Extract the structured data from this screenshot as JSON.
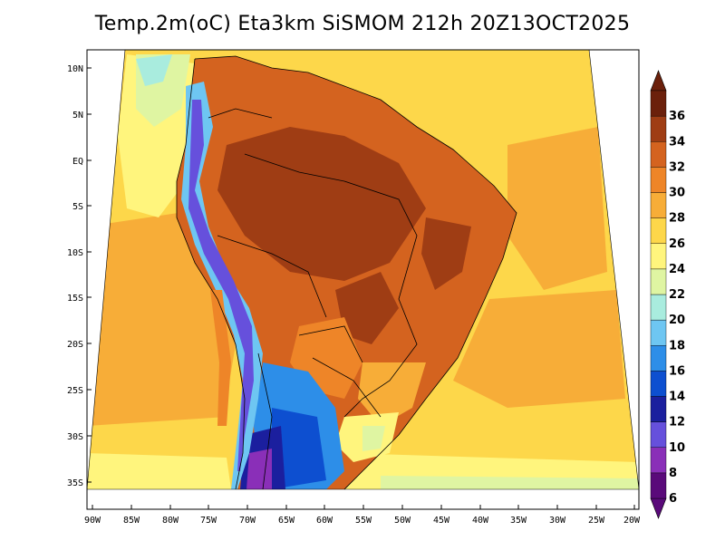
{
  "title": "Temp.2m(oC) Eta3km SiSMOM 212h 20Z13OCT2025",
  "lat_labels": [
    "10N",
    "5N",
    "EQ",
    "5S",
    "10S",
    "15S",
    "20S",
    "25S",
    "30S",
    "35S"
  ],
  "lon_labels": [
    "90W",
    "85W",
    "80W",
    "75W",
    "70W",
    "65W",
    "60W",
    "55W",
    "50W",
    "45W",
    "40W",
    "35W",
    "30W",
    "25W",
    "20W"
  ],
  "colorbar": {
    "labels": [
      "6",
      "8",
      "10",
      "12",
      "14",
      "16",
      "18",
      "20",
      "22",
      "24",
      "26",
      "28",
      "30",
      "32",
      "34",
      "36"
    ],
    "colors": [
      "#5a0a7a",
      "#8a2fb8",
      "#6650dc",
      "#1b1f9e",
      "#0d4fd0",
      "#2d8ee8",
      "#6ec6f2",
      "#a9ecde",
      "#dff5a2",
      "#fff57d",
      "#fdd74a",
      "#f7ad38",
      "#ee8528",
      "#d4631f",
      "#9f3d14",
      "#6b200b"
    ]
  },
  "palette": {
    "ocean_warm": "#f7ad38",
    "ocean_mid": "#fdd74a",
    "ocean_cool": "#fff57d",
    "land_hot": "#d4631f",
    "land_very_hot": "#9f3d14",
    "andes_cold": "#2d8ee8",
    "patagonia": "#1b1f9e"
  }
}
